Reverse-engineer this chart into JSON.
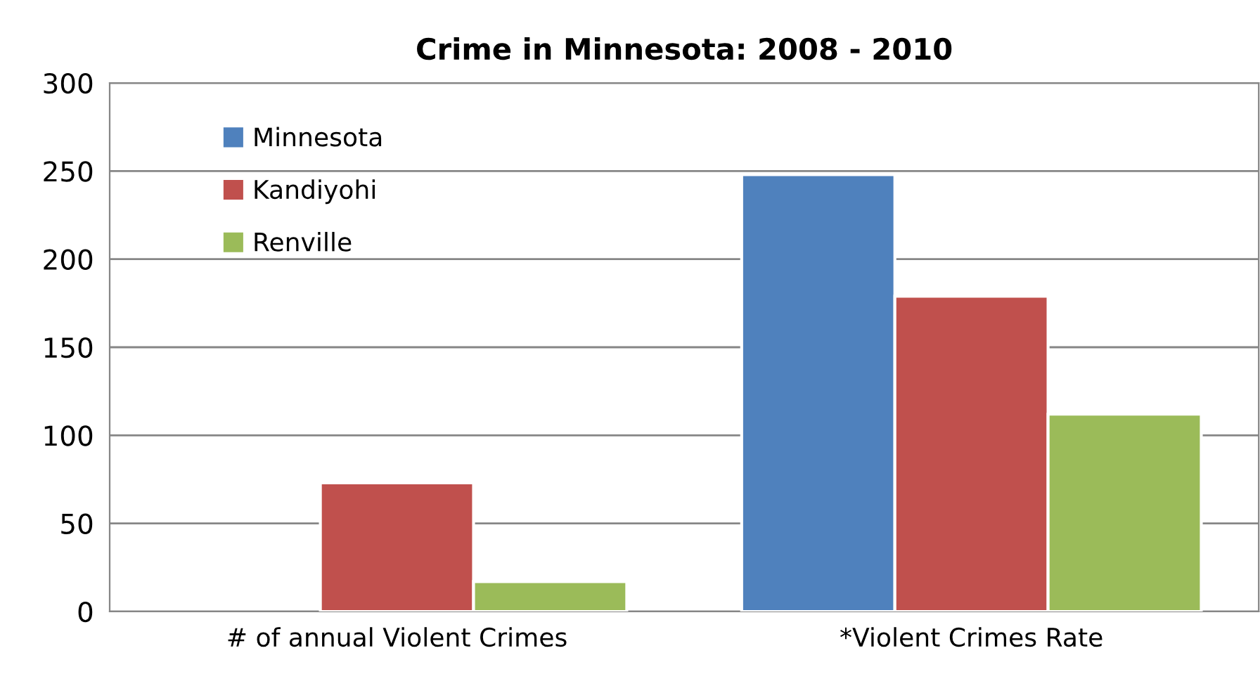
{
  "chart_data": {
    "type": "bar",
    "title": "Crime in Minnesota: 2008 - 2010",
    "categories": [
      "# of annual Violent Crimes",
      "*Violent Crimes Rate"
    ],
    "series": [
      {
        "name": "Minnesota",
        "color": "#4f81bd",
        "values": [
          null,
          248
        ]
      },
      {
        "name": "Kandiyohi",
        "color": "#c0504d",
        "values": [
          73,
          179
        ]
      },
      {
        "name": "Renville",
        "color": "#9bbb59",
        "values": [
          17,
          112
        ]
      }
    ],
    "ylim": [
      0,
      300
    ],
    "yticks": [
      0,
      50,
      100,
      150,
      200,
      250,
      300
    ],
    "grid": "y",
    "legend": "top left"
  }
}
